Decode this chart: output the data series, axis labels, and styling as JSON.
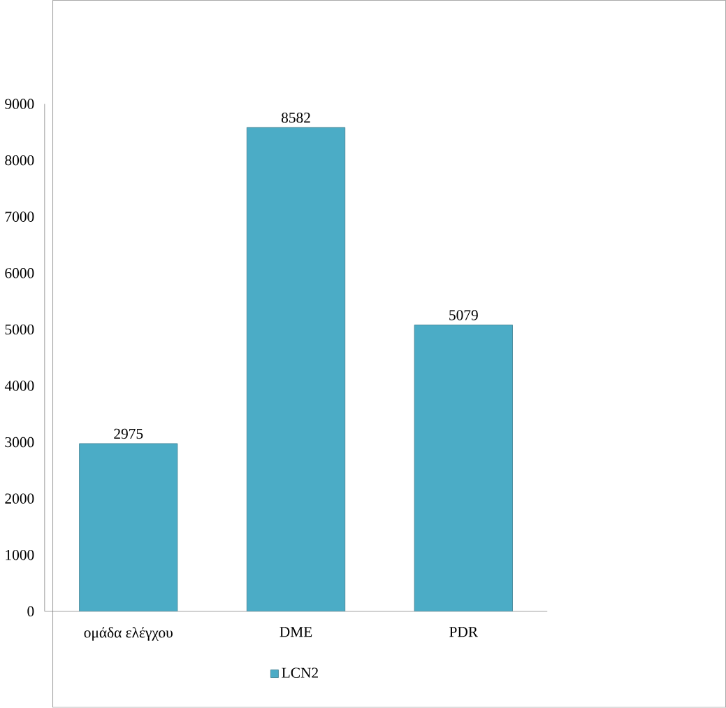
{
  "chart_data": {
    "type": "bar",
    "categories": [
      "ομάδα ελέγχου",
      "DME",
      "PDR"
    ],
    "series": [
      {
        "name": "LCN2",
        "color": "#4bacc6",
        "values": [
          2975,
          8582,
          5079
        ]
      }
    ],
    "ylim": [
      0,
      9000
    ],
    "yticks": [
      0,
      1000,
      2000,
      3000,
      4000,
      5000,
      6000,
      7000,
      8000,
      9000
    ],
    "data_labels": true,
    "legend": "bottom"
  }
}
